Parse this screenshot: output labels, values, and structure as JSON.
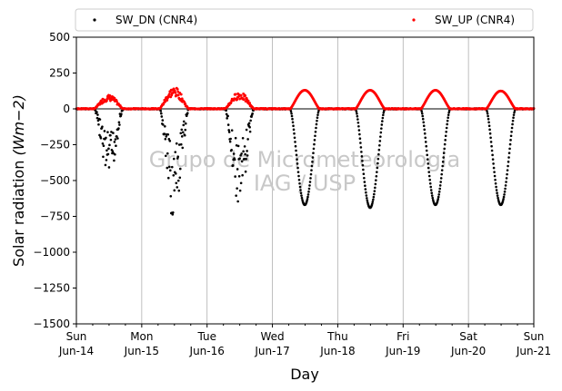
{
  "chart_data": {
    "type": "scatter",
    "xlabel": "Day",
    "ylabel": "Solar radiation ",
    "ylabel_math": "(Wm−2)",
    "ylim": [
      -1500,
      500
    ],
    "yticks": [
      500,
      250,
      0,
      -250,
      -500,
      -750,
      -1000,
      -1250,
      -1500
    ],
    "xlim": [
      "2024-06-14",
      "2024-06-21"
    ],
    "xticks": [
      {
        "weekday": "Sun",
        "date": "Jun-14"
      },
      {
        "weekday": "Mon",
        "date": "Jun-15"
      },
      {
        "weekday": "Tue",
        "date": "Jun-16"
      },
      {
        "weekday": "Wed",
        "date": "Jun-17"
      },
      {
        "weekday": "Thu",
        "date": "Jun-18"
      },
      {
        "weekday": "Fri",
        "date": "Jun-19"
      },
      {
        "weekday": "Sat",
        "date": "Jun-20"
      },
      {
        "weekday": "Sun",
        "date": "Jun-21"
      }
    ],
    "grid": "x",
    "legend": "top",
    "watermark": [
      "Grupo de Micrometeorologia",
      "IAG / USP"
    ],
    "series": [
      {
        "name": "SW_DN (CNR4)",
        "color": "#000000",
        "daily_peak_min": [
          -460,
          -730,
          -620,
          -670,
          -690,
          -670,
          -670
        ]
      },
      {
        "name": "SW_UP (CNR4)",
        "color": "#ff0000",
        "daily_peak_max": [
          90,
          140,
          110,
          130,
          130,
          130,
          125
        ]
      }
    ]
  }
}
